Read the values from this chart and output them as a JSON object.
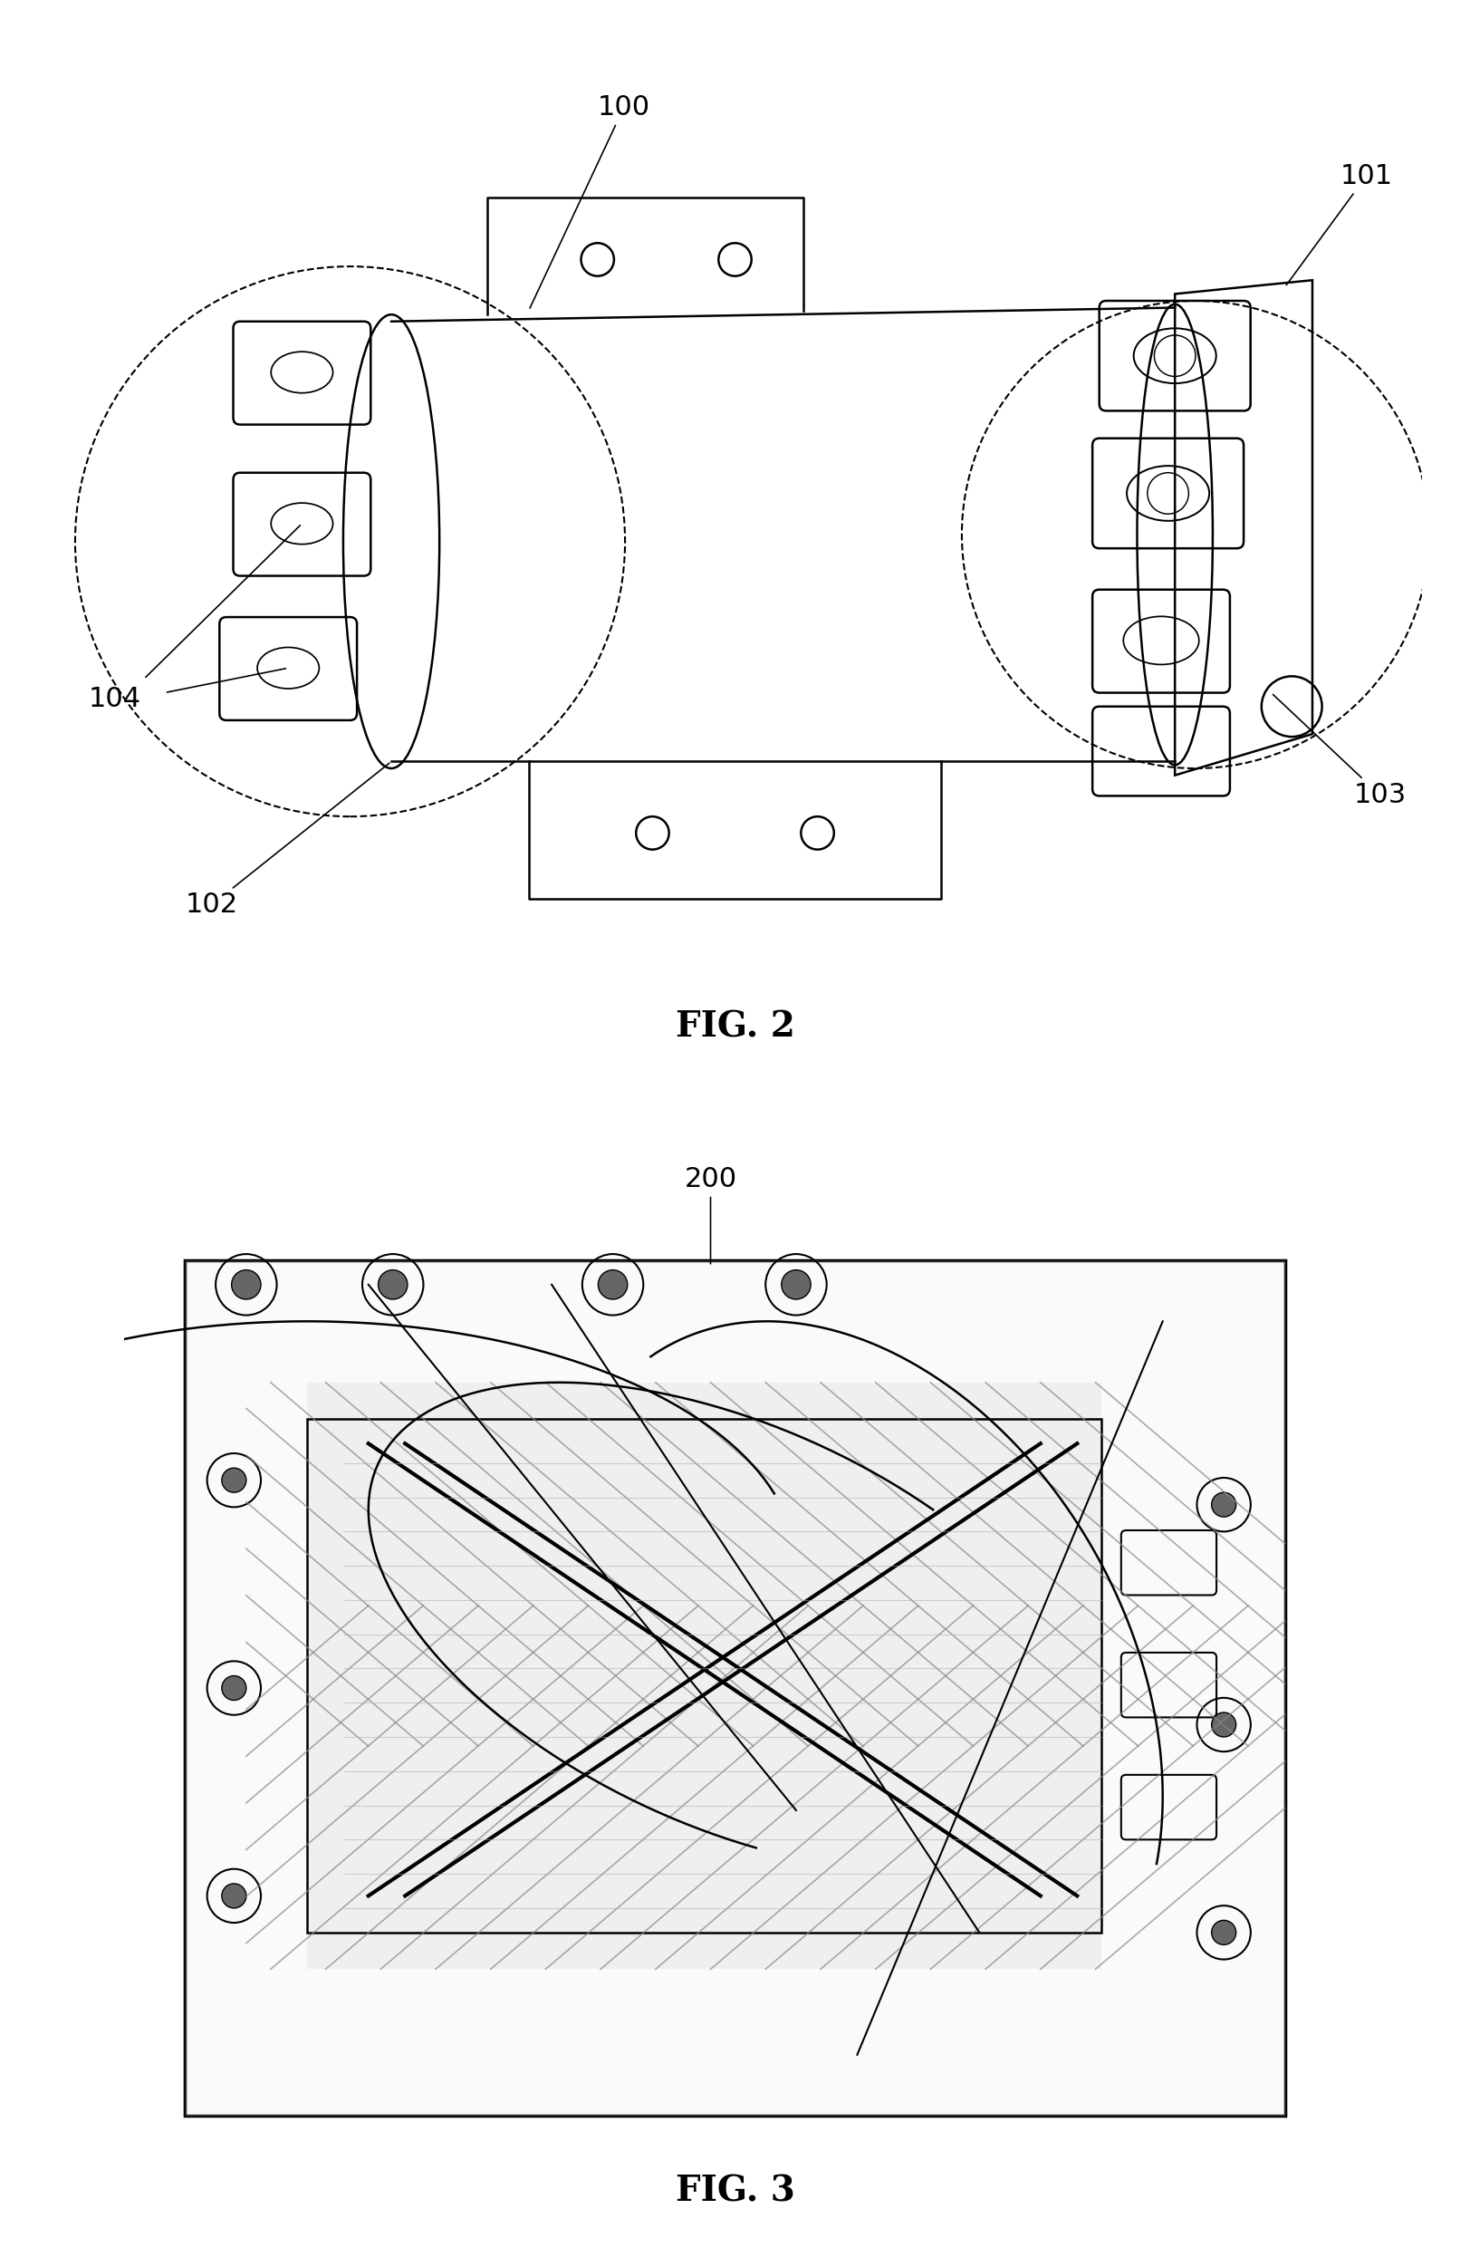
{
  "fig2_label": "FIG. 2",
  "fig3_label": "FIG. 3",
  "label_100": "100",
  "label_101": "101",
  "label_102": "102",
  "label_103": "103",
  "label_104": "104",
  "label_200": "200",
  "bg_color": "#ffffff",
  "line_color": "#000000",
  "fig2_caption_fontsize": 28,
  "fig3_caption_fontsize": 28,
  "annotation_fontsize": 22
}
